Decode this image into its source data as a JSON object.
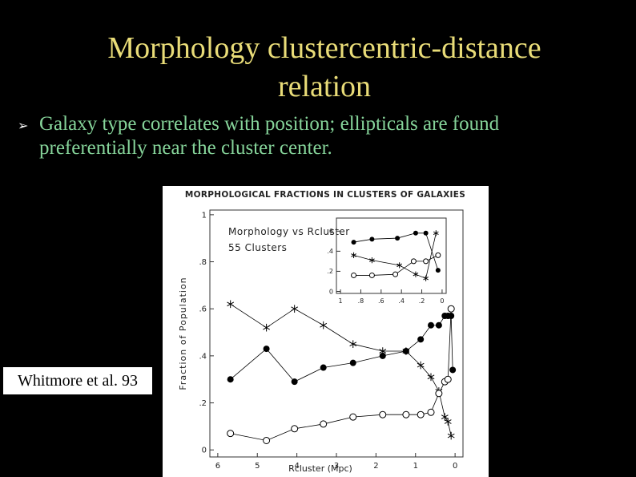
{
  "slide": {
    "title": "Morphology clustercentric-distance relation",
    "bullet": "Galaxy type correlates with position; ellipticals are found preferentially near the cluster center.",
    "caption": "Whitmore et al. 93"
  },
  "chart_data": [
    {
      "type": "line",
      "title": "MORPHOLOGICAL FRACTIONS IN CLUSTERS OF GALAXIES",
      "xlabel": "Rcluster (Mpc)",
      "ylabel": "Fraction of Population",
      "xlim": [
        6.2,
        -0.2
      ],
      "ylim": [
        -0.03,
        1.02
      ],
      "xticks": [
        6,
        5,
        4,
        3,
        2,
        1,
        0
      ],
      "yticks": [
        0,
        {
          "value": 0.2,
          "label": ".2"
        },
        {
          "value": 0.4,
          "label": ".4"
        },
        {
          "value": 0.6,
          "label": ".6"
        },
        {
          "value": 0.8,
          "label": ".8"
        },
        1
      ],
      "series": [
        {
          "color": "#000000",
          "marker": "filled-circle",
          "x": [
            5.68,
            4.77,
            4.06,
            3.33,
            2.58,
            1.83,
            1.24,
            0.87,
            0.61,
            0.41,
            0.26,
            0.18,
            0.1,
            0.06
          ],
          "values": [
            0.3,
            0.43,
            0.29,
            0.35,
            0.37,
            0.4,
            0.42,
            0.47,
            0.53,
            0.53,
            0.57,
            0.57,
            0.57,
            0.34
          ]
        },
        {
          "color": "#000000",
          "marker": "asterisk",
          "x": [
            5.68,
            4.77,
            4.06,
            3.33,
            2.58,
            1.83,
            1.24,
            0.87,
            0.61,
            0.41,
            0.26,
            0.18,
            0.1
          ],
          "values": [
            0.62,
            0.52,
            0.6,
            0.53,
            0.45,
            0.42,
            0.42,
            0.36,
            0.31,
            0.25,
            0.14,
            0.12,
            0.06
          ]
        },
        {
          "color": "#000000",
          "marker": "open-circle",
          "x": [
            5.68,
            4.77,
            4.06,
            3.33,
            2.58,
            1.83,
            1.24,
            0.87,
            0.61,
            0.41,
            0.26,
            0.18,
            0.1
          ],
          "values": [
            0.07,
            0.04,
            0.09,
            0.11,
            0.14,
            0.15,
            0.15,
            0.15,
            0.16,
            0.24,
            0.29,
            0.3,
            0.6
          ]
        }
      ]
    },
    {
      "type": "line",
      "annotations": [
        "Morphology vs Rcluster",
        "55 Clusters"
      ],
      "xlim": [
        1.04,
        -0.04
      ],
      "ylim": [
        -0.02,
        0.73
      ],
      "xticks": [
        1,
        {
          "value": 0.8,
          "label": ".8"
        },
        {
          "value": 0.6,
          "label": ".6"
        },
        {
          "value": 0.4,
          "label": ".4"
        },
        {
          "value": 0.2,
          "label": ".2"
        },
        0
      ],
      "yticks": [
        0,
        {
          "value": 0.2,
          "label": ".2"
        },
        {
          "value": 0.4,
          "label": ".4"
        },
        {
          "value": 0.6,
          "label": ".6"
        }
      ],
      "series": [
        {
          "color": "#000000",
          "marker": "filled-circle",
          "x": [
            0.87,
            0.69,
            0.44,
            0.26,
            0.16,
            0.04
          ],
          "values": [
            0.49,
            0.52,
            0.53,
            0.58,
            0.58,
            0.21
          ]
        },
        {
          "color": "#000000",
          "marker": "asterisk",
          "x": [
            0.87,
            0.69,
            0.42,
            0.26,
            0.16,
            0.06
          ],
          "values": [
            0.36,
            0.31,
            0.26,
            0.17,
            0.13,
            0.58
          ]
        },
        {
          "color": "#000000",
          "marker": "open-circle",
          "x": [
            0.87,
            0.69,
            0.46,
            0.28,
            0.16,
            0.04
          ],
          "values": [
            0.16,
            0.16,
            0.17,
            0.3,
            0.3,
            0.36
          ]
        }
      ]
    }
  ]
}
